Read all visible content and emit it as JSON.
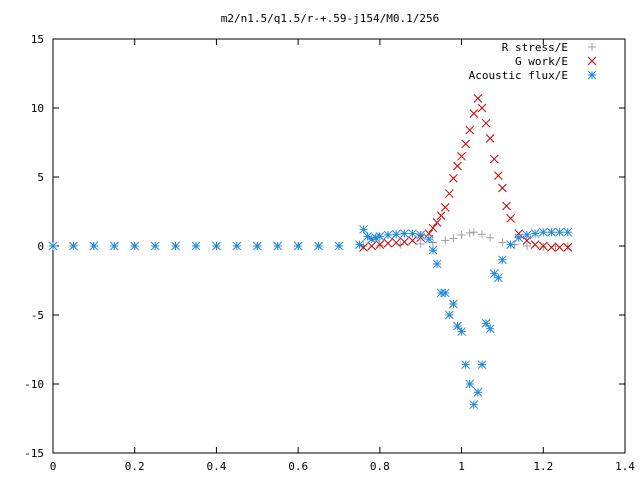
{
  "chart_data": {
    "type": "scatter",
    "title": "m2/n1.5/q1.5/r-+.59-j154/M0.1/256",
    "xlabel": "",
    "ylabel": "",
    "xlim": [
      0,
      1.4
    ],
    "ylim": [
      -15,
      15
    ],
    "x_ticks": [
      0,
      0.2,
      0.4,
      0.6,
      0.8,
      1,
      1.2,
      1.4
    ],
    "x_tick_labels": [
      "0",
      "0.2",
      "0.4",
      "0.6",
      "0.8",
      "1",
      "1.2",
      "1.4"
    ],
    "y_ticks": [
      -15,
      -10,
      -5,
      0,
      5,
      10,
      15
    ],
    "y_tick_labels": [
      "-15",
      "-10",
      "-5",
      "0",
      "5",
      "10",
      "15"
    ],
    "grid": false,
    "legend_position": "top-right",
    "series": [
      {
        "name": "R stress/E",
        "marker": "plus",
        "color": "#a0a0a0",
        "x": [
          0.0,
          0.1,
          0.2,
          0.3,
          0.4,
          0.5,
          0.6,
          0.7,
          0.76,
          0.8,
          0.85,
          0.9,
          0.93,
          0.96,
          0.98,
          1.0,
          1.02,
          1.03,
          1.05,
          1.07,
          1.1,
          1.13,
          1.16,
          1.2,
          1.23,
          1.26
        ],
        "y": [
          0,
          0,
          0,
          0,
          0,
          0,
          0,
          0,
          0.0,
          0.05,
          0.1,
          0.15,
          0.25,
          0.4,
          0.55,
          0.8,
          0.95,
          1.0,
          0.85,
          0.6,
          0.25,
          0.1,
          0.0,
          -0.05,
          -0.02,
          0.0
        ]
      },
      {
        "name": "G work/E",
        "marker": "cross",
        "color": "#cc0000",
        "x": [
          0.76,
          0.78,
          0.8,
          0.82,
          0.84,
          0.86,
          0.88,
          0.9,
          0.92,
          0.93,
          0.94,
          0.95,
          0.96,
          0.97,
          0.98,
          0.99,
          1.0,
          1.01,
          1.02,
          1.03,
          1.04,
          1.05,
          1.06,
          1.07,
          1.08,
          1.09,
          1.1,
          1.11,
          1.12,
          1.14,
          1.16,
          1.18,
          1.2,
          1.22,
          1.24,
          1.26
        ],
        "y": [
          -0.1,
          0.0,
          0.1,
          0.2,
          0.25,
          0.3,
          0.4,
          0.6,
          0.9,
          1.3,
          1.7,
          2.2,
          2.8,
          3.8,
          4.9,
          5.8,
          6.5,
          7.4,
          8.4,
          9.6,
          10.7,
          10.0,
          8.9,
          7.8,
          6.3,
          5.1,
          4.2,
          2.9,
          2.0,
          0.9,
          0.4,
          0.1,
          0.0,
          -0.1,
          -0.1,
          -0.1
        ]
      },
      {
        "name": "Acoustic flux/E",
        "marker": "star",
        "color": "#1f87d8",
        "x": [
          0.0,
          0.05,
          0.1,
          0.15,
          0.2,
          0.25,
          0.3,
          0.35,
          0.4,
          0.45,
          0.5,
          0.55,
          0.6,
          0.65,
          0.7,
          0.75,
          0.76,
          0.77,
          0.78,
          0.79,
          0.8,
          0.82,
          0.84,
          0.86,
          0.88,
          0.9,
          0.92,
          0.93,
          0.94,
          0.95,
          0.96,
          0.97,
          0.98,
          0.99,
          1.0,
          1.01,
          1.02,
          1.03,
          1.04,
          1.05,
          1.06,
          1.07,
          1.08,
          1.09,
          1.1,
          1.12,
          1.14,
          1.16,
          1.18,
          1.2,
          1.22,
          1.24,
          1.26
        ],
        "y": [
          0,
          0,
          0,
          0,
          0,
          0,
          0,
          0,
          0,
          0,
          0,
          0,
          0,
          0,
          0,
          0.1,
          1.2,
          0.7,
          0.5,
          0.6,
          0.7,
          0.8,
          0.85,
          0.9,
          0.9,
          0.8,
          0.5,
          -0.3,
          -1.3,
          -3.4,
          -3.4,
          -5.0,
          -4.2,
          -5.8,
          -6.2,
          -8.6,
          -10.0,
          -11.5,
          -10.6,
          -8.6,
          -5.6,
          -6.0,
          -2.0,
          -2.3,
          -1.0,
          0.1,
          0.6,
          0.8,
          0.9,
          1.0,
          1.0,
          1.0,
          1.0
        ]
      }
    ]
  }
}
